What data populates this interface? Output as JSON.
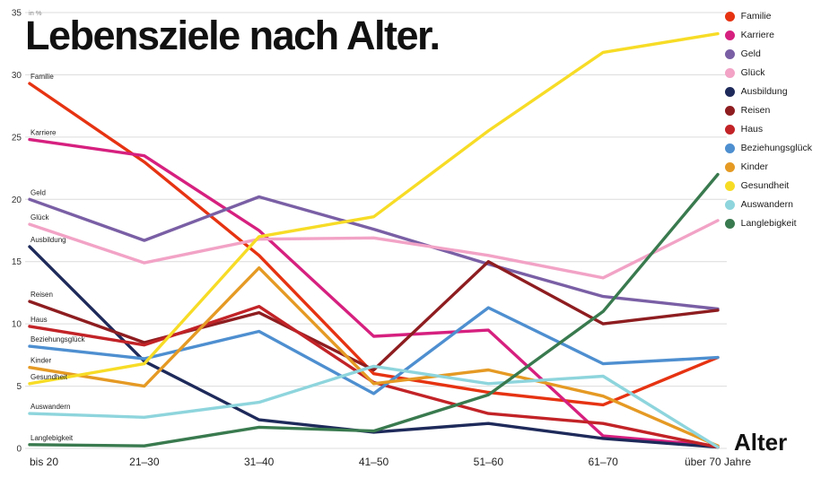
{
  "title": "Lebensziele nach Alter.",
  "axis": {
    "y_unit_label": "in %",
    "y_ticks": [
      0,
      5,
      10,
      15,
      20,
      25,
      30,
      35
    ],
    "x_axis_title": "Alter",
    "categories": [
      "bis 20",
      "21–30",
      "31–40",
      "41–50",
      "51–60",
      "61–70",
      "über 70 Jahre"
    ]
  },
  "chart_data": {
    "type": "line",
    "title": "Lebensziele nach Alter.",
    "xlabel": "Alter",
    "ylabel": "in %",
    "ylim": [
      0,
      35
    ],
    "grid": true,
    "legend_position": "top-right",
    "categories": [
      "bis 20",
      "21–30",
      "31–40",
      "41–50",
      "51–60",
      "61–70",
      "über 70 Jahre"
    ],
    "series": [
      {
        "name": "Familie",
        "color": "#e63312",
        "values": [
          29.3,
          23.0,
          15.5,
          6.0,
          4.5,
          3.5,
          7.3
        ]
      },
      {
        "name": "Karriere",
        "color": "#d6207f",
        "values": [
          24.8,
          23.5,
          17.5,
          9.0,
          9.5,
          1.0,
          0.2
        ]
      },
      {
        "name": "Geld",
        "color": "#7a5fa5",
        "values": [
          20.0,
          16.7,
          20.2,
          17.6,
          14.8,
          12.2,
          11.2
        ]
      },
      {
        "name": "Glück",
        "color": "#f2a3c6",
        "values": [
          18.0,
          14.9,
          16.8,
          16.9,
          15.5,
          13.7,
          18.3
        ]
      },
      {
        "name": "Ausbildung",
        "color": "#1e2a5a",
        "values": [
          16.2,
          7.0,
          2.3,
          1.3,
          2.0,
          0.8,
          0.1
        ]
      },
      {
        "name": "Reisen",
        "color": "#8e1d20",
        "values": [
          11.8,
          8.5,
          10.9,
          6.3,
          15.0,
          10.0,
          11.1
        ]
      },
      {
        "name": "Haus",
        "color": "#c22327",
        "values": [
          9.8,
          8.3,
          11.4,
          5.3,
          2.8,
          2.0,
          0.1
        ]
      },
      {
        "name": "Beziehungsglück",
        "color": "#4e8fd0",
        "values": [
          8.2,
          7.2,
          9.4,
          4.4,
          11.3,
          6.8,
          7.3
        ]
      },
      {
        "name": "Kinder",
        "color": "#e59a24",
        "values": [
          6.5,
          5.0,
          14.5,
          5.2,
          6.3,
          4.2,
          0.2
        ]
      },
      {
        "name": "Gesundheit",
        "color": "#f7dc26",
        "values": [
          5.2,
          6.8,
          17.0,
          18.6,
          25.5,
          31.8,
          33.3
        ]
      },
      {
        "name": "Auswandern",
        "color": "#8ed5dd",
        "values": [
          2.8,
          2.5,
          3.7,
          6.6,
          5.2,
          5.8,
          0.1
        ]
      },
      {
        "name": "Langlebigkeit",
        "color": "#397a4e",
        "values": [
          0.3,
          0.2,
          1.7,
          1.4,
          4.3,
          11.0,
          22.0
        ]
      }
    ]
  }
}
